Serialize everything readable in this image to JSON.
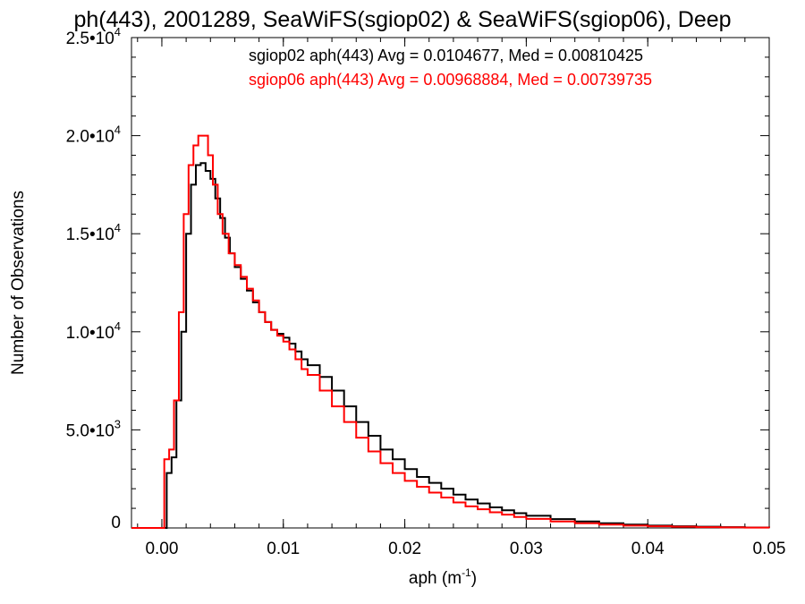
{
  "chart_data": {
    "type": "line",
    "title": "ph(443), 2001289, SeaWiFS(sgiop02) & SeaWiFS(sgiop06), Deep",
    "xlabel": "aph (m",
    "xlabel_exp": "-1",
    "xlabel_close": ")",
    "ylabel": "Number of Observations",
    "xlim": [
      -0.0025,
      0.05
    ],
    "ylim": [
      0,
      25000
    ],
    "grid": false,
    "legend_position": "top-right",
    "x_ticks": [
      {
        "value": 0.0,
        "label": "0.00"
      },
      {
        "value": 0.01,
        "label": "0.01"
      },
      {
        "value": 0.02,
        "label": "0.02"
      },
      {
        "value": 0.03,
        "label": "0.03"
      },
      {
        "value": 0.04,
        "label": "0.04"
      },
      {
        "value": 0.05,
        "label": "0.05"
      }
    ],
    "y_ticks": [
      {
        "value": 0,
        "mant": "0",
        "exp": ""
      },
      {
        "value": 5000,
        "mant": "5.0•10",
        "exp": "3"
      },
      {
        "value": 10000,
        "mant": "1.0•10",
        "exp": "4"
      },
      {
        "value": 15000,
        "mant": "1.5•10",
        "exp": "4"
      },
      {
        "value": 20000,
        "mant": "2.0•10",
        "exp": "4"
      },
      {
        "value": 25000,
        "mant": "2.5•10",
        "exp": "4"
      }
    ],
    "series": [
      {
        "name": "sgiop02 aph(443) Avg = 0.0104677, Med = 0.00810425",
        "color": "#000000",
        "x": [
          -0.0025,
          0.0,
          0.0004,
          0.0008,
          0.0012,
          0.0016,
          0.002,
          0.0024,
          0.0028,
          0.0032,
          0.0036,
          0.004,
          0.0044,
          0.0048,
          0.0052,
          0.0056,
          0.006,
          0.0065,
          0.007,
          0.0075,
          0.008,
          0.0085,
          0.009,
          0.0095,
          0.01,
          0.0105,
          0.011,
          0.0115,
          0.012,
          0.013,
          0.014,
          0.015,
          0.016,
          0.017,
          0.018,
          0.019,
          0.02,
          0.021,
          0.022,
          0.023,
          0.024,
          0.025,
          0.026,
          0.027,
          0.028,
          0.029,
          0.03,
          0.032,
          0.034,
          0.036,
          0.038,
          0.04,
          0.042,
          0.044,
          0.046,
          0.048,
          0.05
        ],
        "values": [
          0,
          0,
          2800,
          3600,
          6500,
          10000,
          15000,
          17500,
          18500,
          18600,
          18200,
          17800,
          16800,
          15800,
          14800,
          14000,
          13300,
          12700,
          12100,
          11500,
          11000,
          10500,
          10100,
          9900,
          9700,
          9400,
          9000,
          8600,
          8300,
          7700,
          7000,
          6200,
          5400,
          4700,
          4000,
          3500,
          3000,
          2600,
          2300,
          2000,
          1700,
          1450,
          1250,
          1050,
          900,
          750,
          620,
          450,
          330,
          240,
          170,
          120,
          85,
          60,
          40,
          25,
          15
        ]
      },
      {
        "name": "sgiop06 aph(443) Avg = 0.00968884, Med = 0.00739735",
        "color": "#ff0000",
        "x": [
          -0.0025,
          -0.0002,
          0.0002,
          0.0006,
          0.001,
          0.0014,
          0.0018,
          0.0022,
          0.0026,
          0.003,
          0.0034,
          0.0038,
          0.0042,
          0.0046,
          0.005,
          0.0055,
          0.006,
          0.0065,
          0.007,
          0.0075,
          0.008,
          0.0085,
          0.009,
          0.0095,
          0.01,
          0.0105,
          0.011,
          0.0115,
          0.012,
          0.013,
          0.014,
          0.015,
          0.016,
          0.017,
          0.018,
          0.019,
          0.02,
          0.021,
          0.022,
          0.023,
          0.024,
          0.025,
          0.026,
          0.027,
          0.028,
          0.029,
          0.03,
          0.032,
          0.034,
          0.036,
          0.038,
          0.04,
          0.042,
          0.044,
          0.046,
          0.048,
          0.05
        ],
        "values": [
          0,
          0,
          3500,
          4000,
          6500,
          11000,
          16000,
          18500,
          19500,
          20000,
          20000,
          19000,
          17500,
          16000,
          15000,
          14000,
          13400,
          12800,
          12200,
          11600,
          11000,
          10500,
          10100,
          9800,
          9500,
          9100,
          8600,
          8100,
          7800,
          7000,
          6200,
          5400,
          4600,
          3900,
          3300,
          2800,
          2400,
          2100,
          1800,
          1550,
          1300,
          1100,
          950,
          800,
          680,
          560,
          460,
          330,
          240,
          170,
          120,
          85,
          60,
          40,
          28,
          18,
          10
        ]
      }
    ]
  }
}
